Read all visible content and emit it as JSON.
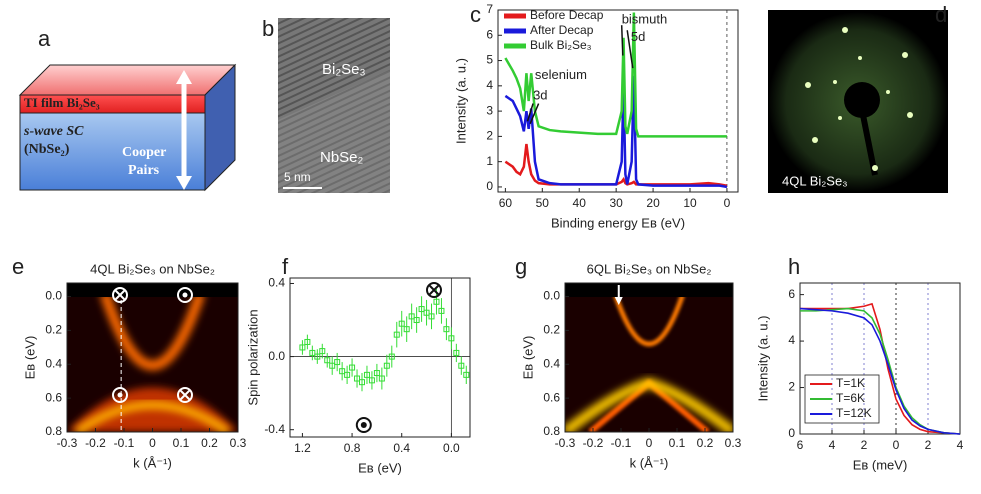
{
  "panel_a": {
    "letter": "a",
    "film": "TI film Bi₂Se₃",
    "sc": "s-wave SC",
    "sc2": "(NbSe₂)",
    "cooper": "Cooper",
    "pairs": "Pairs"
  },
  "panel_b": {
    "letter": "b",
    "top": "Bi₂Se₃",
    "bottom": "NbSe₂",
    "scale": "5 nm"
  },
  "panel_d": {
    "letter": "d",
    "label": "4QL Bi₂Se₃"
  },
  "chart_data": [
    {
      "panel": "c",
      "type": "line",
      "xlabel": "Binding energy Eʙ (eV)",
      "ylabel": "Intensity (a. u.)",
      "xlim": [
        62,
        -3
      ],
      "ylim": [
        -0.2,
        7
      ],
      "xticks": [
        60,
        50,
        40,
        30,
        20,
        10,
        0
      ],
      "yticks": [
        0,
        1,
        2,
        3,
        4,
        5,
        6,
        7
      ],
      "vline": 0,
      "legend": "top-left",
      "annotations": [
        "selenium",
        "3d",
        "bismuth",
        "5d"
      ],
      "x": [
        60,
        58,
        57,
        56,
        55,
        54.3,
        53.7,
        53,
        52,
        51,
        48,
        45,
        40,
        35,
        30,
        28.5,
        28,
        27.5,
        27,
        25.8,
        25.2,
        24.6,
        24,
        20,
        15,
        10,
        5,
        2,
        0
      ],
      "series": [
        {
          "name": "Before Decap",
          "color": "#e31a1c",
          "values": [
            1.0,
            0.8,
            0.6,
            0.5,
            0.8,
            1.7,
            1.0,
            0.5,
            0.25,
            0.15,
            0.1,
            0.1,
            0.1,
            0.1,
            0.1,
            0.2,
            0.3,
            0.15,
            0.1,
            0.15,
            0.2,
            0.1,
            0.1,
            0.1,
            0.1,
            0.1,
            0.15,
            0.1,
            0.05
          ]
        },
        {
          "name": "After Decap",
          "color": "#1a1adb",
          "values": [
            3.6,
            3.4,
            3.1,
            2.8,
            2.2,
            3.0,
            2.3,
            3.1,
            1.0,
            0.3,
            0.15,
            0.1,
            0.1,
            0.1,
            0.1,
            1.0,
            4.0,
            0.5,
            0.1,
            1.0,
            4.4,
            0.3,
            0.1,
            0.05,
            0.05,
            0.05,
            0.05,
            0.05,
            0.0
          ]
        },
        {
          "name": "Bulk Bi₂Se₃",
          "color": "#33cc33",
          "values": [
            5.1,
            4.6,
            4.3,
            3.9,
            3.0,
            4.5,
            3.4,
            4.5,
            3.0,
            2.4,
            2.25,
            2.2,
            2.15,
            2.1,
            2.1,
            3.0,
            5.9,
            2.4,
            2.1,
            3.0,
            6.9,
            2.3,
            2.0,
            2.0,
            2.0,
            2.0,
            2.0,
            2.0,
            2.0
          ]
        }
      ]
    },
    {
      "panel": "e",
      "type": "heatmap",
      "title": "4QL Bi₂Se₃ on NbSe₂",
      "xlabel": "k (Å⁻¹)",
      "ylabel": "Eʙ (eV)",
      "xlim": [
        -0.3,
        0.3
      ],
      "ylim": [
        0.8,
        -0.08
      ],
      "xticks": [
        -0.3,
        -0.2,
        -0.1,
        0,
        0.1,
        0.2,
        0.3
      ],
      "yticks": [
        {
          "value": 0,
          "label": "0.0"
        },
        0.2,
        0.4,
        0.6,
        0.8
      ],
      "vline": -0.11
    },
    {
      "panel": "f",
      "type": "scatter",
      "xlabel": "Eʙ (eV)",
      "ylabel": "Spin polarization",
      "color": "#33dd33",
      "xlim": [
        1.3,
        -0.15
      ],
      "ylim": [
        -0.44,
        0.43
      ],
      "xticks": [
        1.2,
        0.8,
        0.4,
        {
          "value": 0,
          "label": "0.0"
        }
      ],
      "yticks": [
        0.4,
        {
          "value": 0,
          "label": "0.0"
        },
        -0.4
      ],
      "vline": 0,
      "hline": 0,
      "x": [
        1.2,
        1.16,
        1.12,
        1.08,
        1.04,
        1.0,
        0.96,
        0.92,
        0.88,
        0.84,
        0.8,
        0.76,
        0.72,
        0.68,
        0.64,
        0.6,
        0.56,
        0.52,
        0.48,
        0.44,
        0.4,
        0.36,
        0.32,
        0.28,
        0.24,
        0.2,
        0.16,
        0.12,
        0.08,
        0.04,
        0.0,
        -0.04,
        -0.08,
        -0.12
      ],
      "values": [
        0.05,
        0.08,
        0.02,
        0.0,
        0.03,
        -0.02,
        -0.05,
        -0.03,
        -0.08,
        -0.1,
        -0.06,
        -0.12,
        -0.14,
        -0.1,
        -0.13,
        -0.09,
        -0.12,
        -0.05,
        0.0,
        0.12,
        0.18,
        0.15,
        0.22,
        0.2,
        0.26,
        0.24,
        0.22,
        0.3,
        0.25,
        0.15,
        0.1,
        0.02,
        -0.05,
        -0.1
      ],
      "errors": [
        0.04,
        0.04,
        0.04,
        0.04,
        0.04,
        0.04,
        0.05,
        0.05,
        0.05,
        0.05,
        0.05,
        0.05,
        0.05,
        0.05,
        0.05,
        0.05,
        0.06,
        0.06,
        0.06,
        0.07,
        0.07,
        0.07,
        0.07,
        0.07,
        0.07,
        0.07,
        0.07,
        0.07,
        0.07,
        0.06,
        0.06,
        0.05,
        0.05,
        0.05
      ]
    },
    {
      "panel": "g",
      "type": "heatmap",
      "title": "6QL Bi₂Se₃ on NbSe₂",
      "xlabel": "k (Å⁻¹)",
      "ylabel": "Eʙ (eV)",
      "xlim": [
        -0.3,
        0.3
      ],
      "ylim": [
        0.8,
        -0.08
      ],
      "xticks": [
        -0.3,
        -0.2,
        -0.1,
        0,
        0.1,
        0.2,
        0.3
      ],
      "yticks": [
        {
          "value": 0,
          "label": "0.0"
        },
        0.2,
        0.4,
        0.6,
        0.8
      ]
    },
    {
      "panel": "h",
      "type": "line",
      "xlabel": "Eʙ (meV)",
      "ylabel": "Intensity (a. u.)",
      "grid": true,
      "legend": "bottom-left",
      "xlim": [
        6,
        -4
      ],
      "ylim": [
        0,
        6.5
      ],
      "xticks": [
        6,
        4,
        2,
        0,
        {
          "value": -2,
          "label": "2"
        },
        {
          "value": -4,
          "label": "4"
        }
      ],
      "yticks": [
        0,
        2,
        4,
        6
      ],
      "x": [
        6,
        5,
        4,
        3,
        2,
        1.5,
        1,
        0.5,
        0,
        -0.5,
        -1,
        -1.5,
        -2,
        -3,
        -4
      ],
      "series": [
        {
          "name": "T=1K",
          "color": "#e31a1c",
          "values": [
            5.4,
            5.4,
            5.4,
            5.4,
            5.5,
            5.6,
            4.5,
            2.8,
            1.5,
            0.8,
            0.4,
            0.2,
            0.1,
            0.05,
            0
          ]
        },
        {
          "name": "T=6K",
          "color": "#33bb33",
          "values": [
            5.3,
            5.3,
            5.35,
            5.4,
            5.3,
            5.0,
            4.3,
            3.2,
            2.0,
            1.2,
            0.7,
            0.4,
            0.2,
            0.05,
            0
          ]
        },
        {
          "name": "T=12K",
          "color": "#1a1adb",
          "values": [
            5.4,
            5.35,
            5.3,
            5.2,
            5.0,
            4.7,
            4.0,
            3.0,
            1.9,
            1.1,
            0.6,
            0.35,
            0.2,
            0.05,
            0
          ]
        }
      ]
    }
  ]
}
